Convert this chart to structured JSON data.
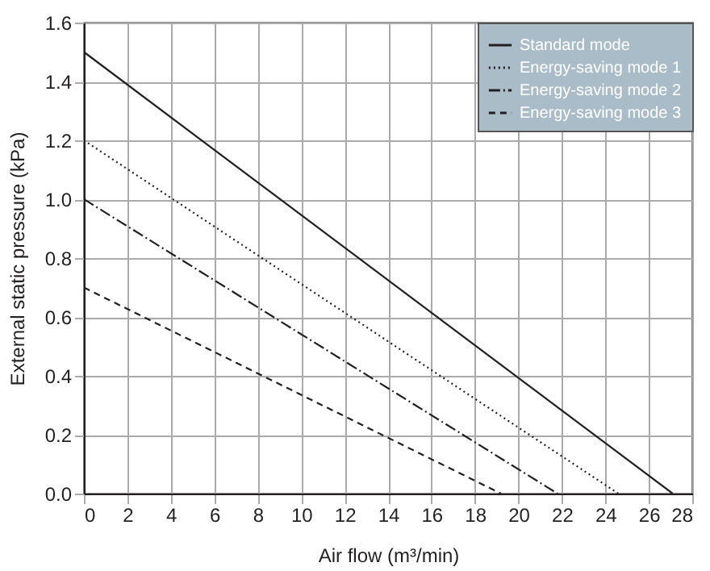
{
  "chart_data": {
    "type": "line",
    "xlabel": "Air flow (m³/min)",
    "ylabel": "External static pressure (kPa)",
    "xlim": [
      0,
      28
    ],
    "xticks": [
      0,
      2,
      4,
      6,
      8,
      10,
      12,
      14,
      16,
      18,
      20,
      22,
      24,
      26,
      28
    ],
    "ylim": [
      0,
      1.6
    ],
    "yticks": [
      {
        "value": 0,
        "label": "0.0"
      },
      0.2,
      0.4,
      0.6,
      0.8,
      {
        "value": 1,
        "label": "1.0"
      },
      1.2,
      1.4,
      1.6
    ],
    "grid": true,
    "legend": "top right",
    "marker": "none",
    "series": [
      {
        "name": "Standard mode",
        "color": "#231f20",
        "line_style": "solid",
        "x": [
          0,
          27.1
        ],
        "values": [
          1.5,
          0
        ]
      },
      {
        "name": "Energy-saving mode 1",
        "color": "#231f20",
        "line_style": "dotted",
        "x": [
          0,
          24.6
        ],
        "values": [
          1.2,
          0
        ]
      },
      {
        "name": "Energy-saving mode 2",
        "color": "#231f20",
        "line_style": "dashdot",
        "x": [
          0,
          21.8
        ],
        "values": [
          1.0,
          0
        ]
      },
      {
        "name": "Energy-saving mode 3",
        "color": "#231f20",
        "line_style": "dashed",
        "x": [
          0,
          19.2
        ],
        "values": [
          0.7,
          0
        ]
      }
    ]
  }
}
